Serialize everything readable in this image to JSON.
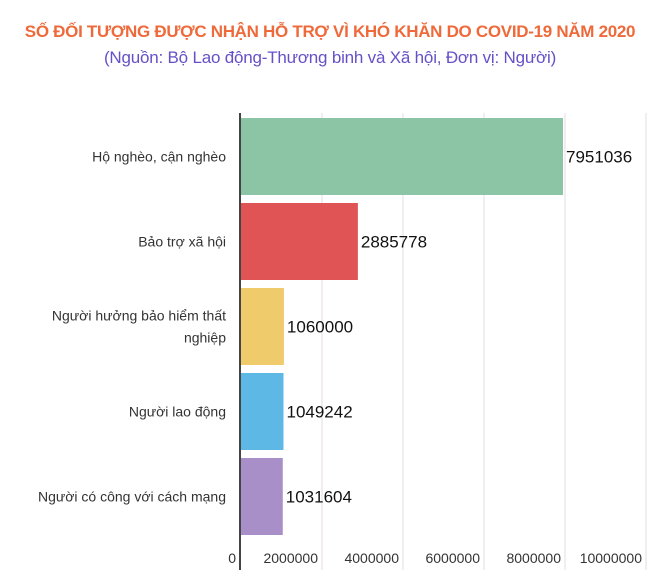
{
  "chart_data": {
    "type": "bar",
    "orientation": "horizontal",
    "title": "SỐ ĐỐI TƯỢNG ĐƯỢC NHẬN HỖ TRỢ VÌ KHÓ KHĂN DO COVID-19 NĂM 2020",
    "subtitle": "(Nguồn: Bộ Lao động-Thương binh và Xã hội, Đơn vị: Người)",
    "categories": [
      "Hộ nghèo, cận nghèo",
      "Bảo trợ xã hội",
      "Người hưởng bảo hiểm thất nghiệp",
      "Người lao động",
      "Người có công với cách mạng"
    ],
    "category_lines": [
      [
        "Hộ nghèo, cận nghèo"
      ],
      [
        "Bảo trợ xã hội"
      ],
      [
        "Người hưởng bảo hiểm thất",
        "nghiệp"
      ],
      [
        "Người lao động"
      ],
      [
        "Người có công với cách mạng"
      ]
    ],
    "values": [
      7951036,
      2885778,
      1060000,
      1049242,
      1031604
    ],
    "value_labels": [
      "7951036",
      "2885778",
      "1060000",
      "1049242",
      "1031604"
    ],
    "colors": [
      "#8cc5a6",
      "#e05456",
      "#f0cb6c",
      "#5db8e6",
      "#a88fc8"
    ],
    "xlim": [
      0,
      10000000
    ],
    "xticks": [
      0,
      2000000,
      4000000,
      6000000,
      8000000,
      10000000
    ],
    "xtick_labels": [
      "0",
      "2000000",
      "4000000",
      "6000000",
      "8000000",
      "10000000"
    ],
    "grid": true,
    "title_color": "#ef6a3a",
    "subtitle_color": "#6650c8"
  }
}
